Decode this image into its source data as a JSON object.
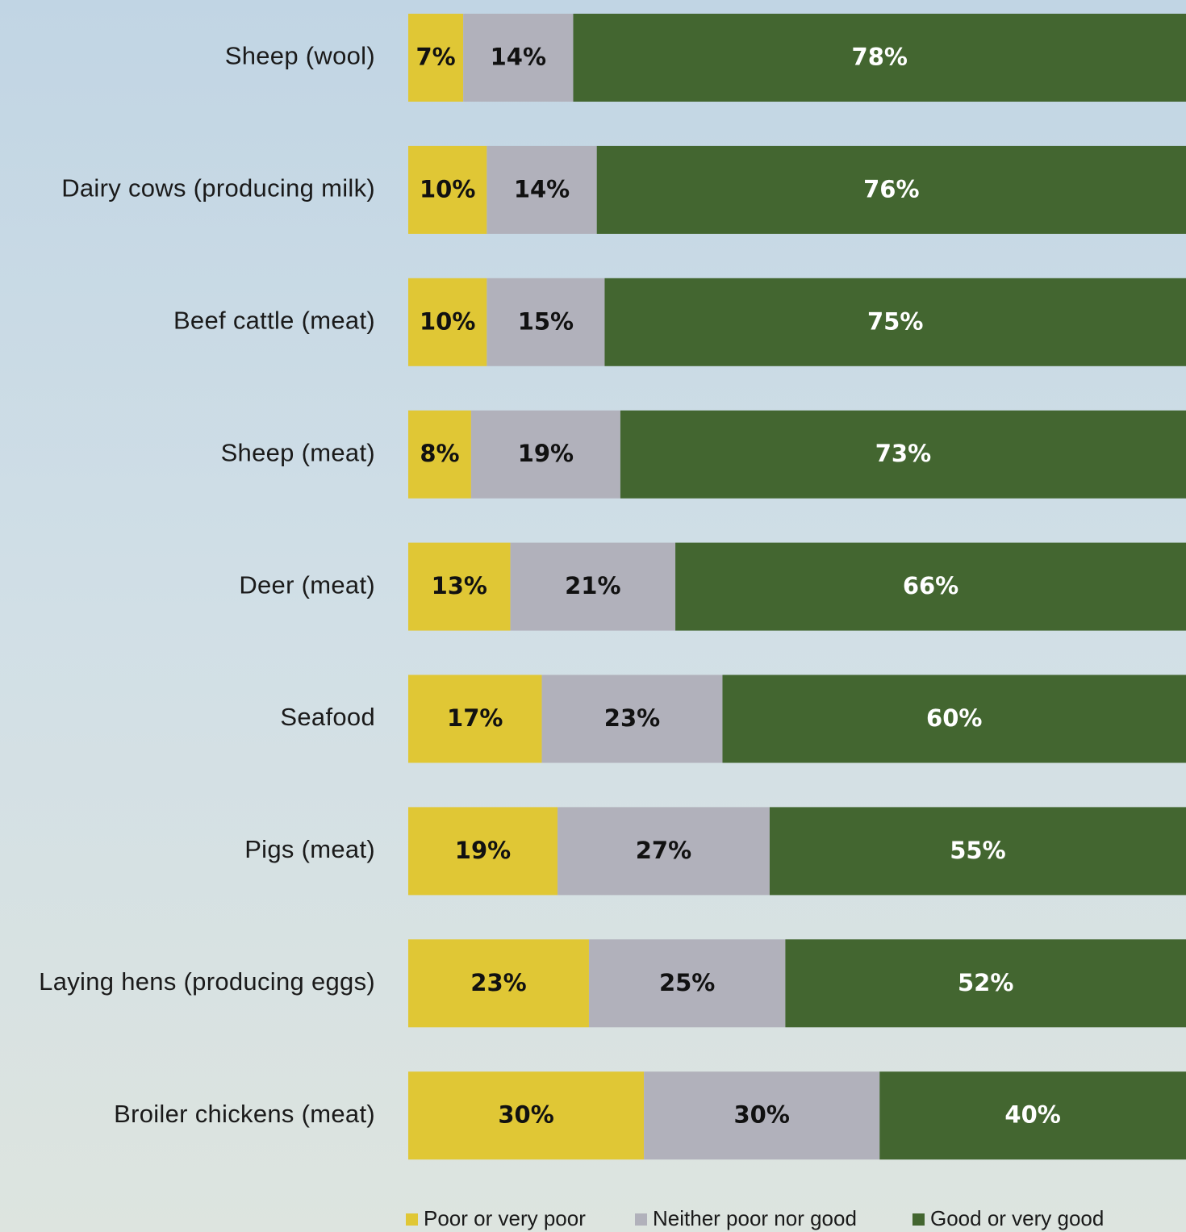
{
  "chart_data": {
    "type": "bar",
    "orientation": "horizontal",
    "stacked": true,
    "unit": "%",
    "categories": [
      "Sheep (wool)",
      "Dairy cows (producing milk)",
      "Beef cattle (meat)",
      "Sheep (meat)",
      "Deer (meat)",
      "Seafood",
      "Pigs (meat)",
      "Laying hens (producing eggs)",
      "Broiler chickens (meat)"
    ],
    "series": [
      {
        "name": "Poor or very poor",
        "color": "#e0c735",
        "label_color": "#111111",
        "values": [
          7,
          10,
          10,
          8,
          13,
          17,
          19,
          23,
          30
        ]
      },
      {
        "name": "Neither poor nor good",
        "color": "#b1b1bb",
        "label_color": "#111111",
        "values": [
          14,
          14,
          15,
          19,
          21,
          23,
          27,
          25,
          30
        ]
      },
      {
        "name": "Good or very good",
        "color": "#436630",
        "label_color": "#ffffff",
        "values": [
          78,
          76,
          75,
          73,
          66,
          60,
          55,
          52,
          40
        ]
      }
    ],
    "xlim": [
      0,
      99
    ],
    "grid": false,
    "legend_position": "bottom"
  }
}
